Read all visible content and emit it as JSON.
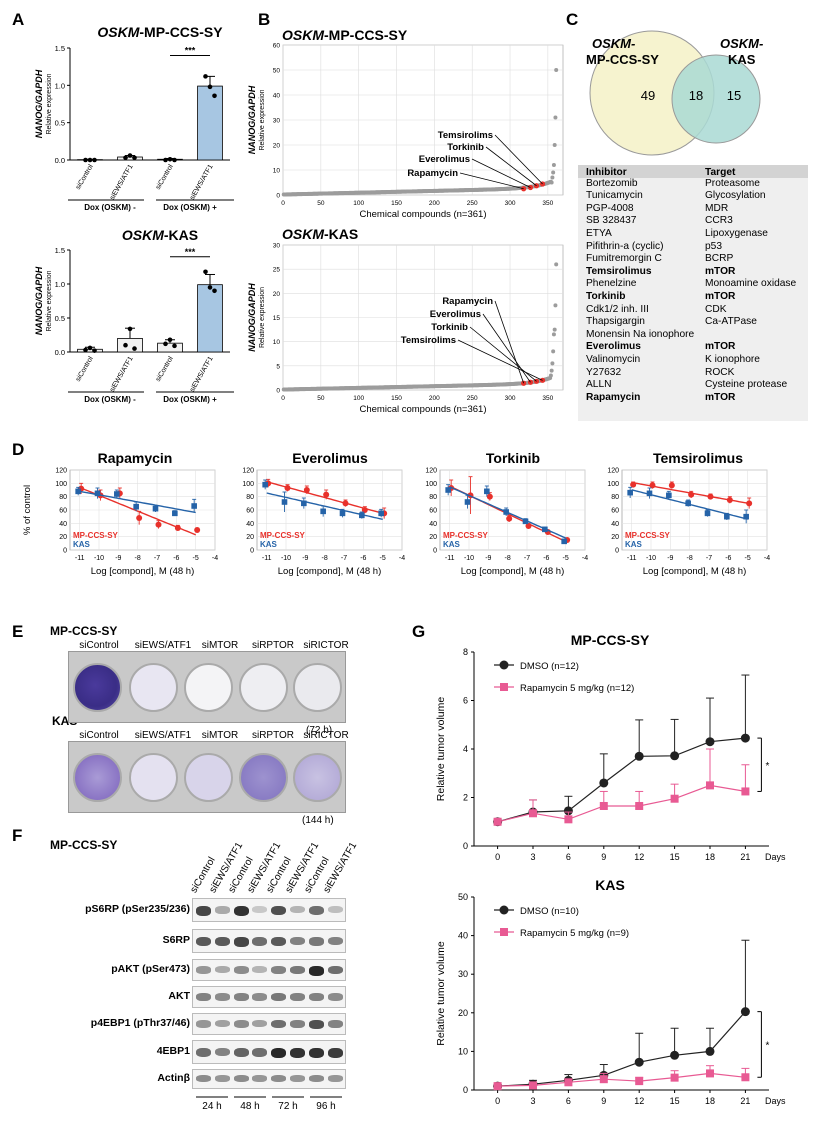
{
  "panels": {
    "A": "A",
    "B": "B",
    "C": "C",
    "D": "D",
    "E": "E",
    "F": "F",
    "G": "G"
  },
  "panelA": {
    "title_top_italic": "OSKM",
    "title_top_rest": "-MP-CCS-SY",
    "title_bottom_italic": "OSKM",
    "title_bottom_rest": "-KAS",
    "ylabel_italic": "NANOG/GAPDH",
    "ylabel_sub": "Relative expression",
    "ticks_top": [
      "0.0",
      "0.5",
      "1.0",
      "1.5"
    ],
    "ticks_bottom": [
      "0.0",
      "0.5",
      "1.0",
      "1.5"
    ],
    "categories": [
      "siControl",
      "siEWS/ATF1",
      "siControl",
      "siEWS/ATF1"
    ],
    "group_minus": "Dox (OSKM) -",
    "group_plus": "Dox (OSKM) +",
    "sig": "***"
  },
  "panelB": {
    "title_italic": "OSKM",
    "title_top_rest": "-MP-CCS-SY",
    "title_bottom_rest": "-KAS",
    "ylabel_italic": "NANOG/GAPDH",
    "ylabel_sub": "Relative expression",
    "yticks": [
      "0",
      "10",
      "20",
      "30",
      "40",
      "50",
      "60"
    ],
    "xticks": [
      "0",
      "50",
      "100",
      "150",
      "200",
      "250",
      "300",
      "350"
    ],
    "xlabel": "Chemical compounds (n=361)",
    "labels_top": [
      "Temsirolims",
      "Torkinib",
      "Everolimus",
      "Rapamycin"
    ],
    "labels_bottom": [
      "Rapamycin",
      "Everolimus",
      "Torkinib",
      "Temsirolims"
    ]
  },
  "panelC": {
    "set1_italic": "OSKM-",
    "set1_rest": "MP-CCS-SY",
    "set2_italic": "OSKM-",
    "set2_rest": "KAS",
    "only1": "49",
    "both": "18",
    "only2": "15",
    "header": {
      "inhibitor": "Inhibitor",
      "target": "Target"
    },
    "rows": [
      {
        "inhibitor": "Bortezomib",
        "target": "Proteasome",
        "bold": false
      },
      {
        "inhibitor": "Tunicamycin",
        "target": "Glycosylation",
        "bold": false
      },
      {
        "inhibitor": "PGP-4008",
        "target": "MDR",
        "bold": false
      },
      {
        "inhibitor": "SB 328437",
        "target": "CCR3",
        "bold": false
      },
      {
        "inhibitor": "ETYA",
        "target": "Lipoxygenase",
        "bold": false
      },
      {
        "inhibitor": "Pifithrin-a (cyclic)",
        "target": "p53",
        "bold": false
      },
      {
        "inhibitor": "Fumitremorgin C",
        "target": "BCRP",
        "bold": false
      },
      {
        "inhibitor": "Temsirolimus",
        "target": "mTOR",
        "bold": true
      },
      {
        "inhibitor": "Phenelzine",
        "target": "Monoamine oxidase",
        "bold": false
      },
      {
        "inhibitor": "Torkinib",
        "target": "mTOR",
        "bold": true
      },
      {
        "inhibitor": "Cdk1/2 inh. III",
        "target": "CDK",
        "bold": false
      },
      {
        "inhibitor": "Thapsigargin",
        "target": "Ca-ATPase",
        "bold": false
      },
      {
        "inhibitor": "Monensin Na ionophore",
        "target": "",
        "bold": false
      },
      {
        "inhibitor": "Everolimus",
        "target": "mTOR",
        "bold": true
      },
      {
        "inhibitor": "Valinomycin",
        "target": "K ionophore",
        "bold": false
      },
      {
        "inhibitor": "Y27632",
        "target": "ROCK",
        "bold": false
      },
      {
        "inhibitor": "ALLN",
        "target": "Cysteine protease",
        "bold": false
      },
      {
        "inhibitor": "Rapamycin",
        "target": "mTOR",
        "bold": true
      }
    ]
  },
  "panelD": {
    "titles": [
      "Rapamycin",
      "Everolimus",
      "Torkinib",
      "Temsirolimus"
    ],
    "ylabel": "% of control",
    "yticks": [
      "0",
      "20",
      "40",
      "60",
      "80",
      "100",
      "120"
    ],
    "xticks": [
      "-11",
      "-10",
      "-9",
      "-8",
      "-7",
      "-6",
      "-5",
      "-4"
    ],
    "xlabel": "Log [compond], M (48 h)",
    "legend_red": "MP-CCS-SY",
    "legend_blue": "KAS"
  },
  "panelE": {
    "cell1": "MP-CCS-SY",
    "cell2": "KAS",
    "wells": [
      "siControl",
      "siEWS/ATF1",
      "siMTOR",
      "siRPTOR",
      "siRICTOR"
    ],
    "time1": "(72 h)",
    "time2": "(144 h)"
  },
  "panelF": {
    "cell": "MP-CCS-SY",
    "lanes": [
      "siControl",
      "siEWS/ATF1",
      "siControl",
      "siEWS/ATF1",
      "siControl",
      "siEWS/ATF1",
      "siControl",
      "siEWS/ATF1"
    ],
    "blots": [
      "pS6RP (pSer235/236)",
      "S6RP",
      "pAKT (pSer473)",
      "AKT",
      "p4EBP1 (pThr37/46)",
      "4EBP1",
      "Actinβ"
    ],
    "times": [
      "24 h",
      "48 h",
      "72 h",
      "96 h"
    ]
  },
  "panelG": {
    "title_top": "MP-CCS-SY",
    "title_bottom": "KAS",
    "ylabel": "Relative tumor volume",
    "yticks_top": [
      "0",
      "2",
      "4",
      "6",
      "8"
    ],
    "yticks_bottom": [
      "0",
      "10",
      "20",
      "30",
      "40",
      "50"
    ],
    "xticks": [
      "0",
      "3",
      "6",
      "9",
      "12",
      "15",
      "18",
      "21"
    ],
    "xunit": "Days",
    "legend_top": [
      "DMSO (n=12)",
      "Rapamycin 5 mg/kg (n=12)"
    ],
    "legend_bottom": [
      "DMSO (n=10)",
      "Rapamycin 5 mg/kg (n=9)"
    ],
    "sig": "*"
  },
  "colors": {
    "red": "#e8312b",
    "blue": "#2563a8",
    "bar": "#a7c6e2",
    "pink": "#e85a93",
    "venn1": "#f6f3cf",
    "venn2": "#a9d9d3"
  },
  "chart_data": [
    {
      "type": "bar",
      "title": "OSKM-MP-CCS-SY",
      "ylabel": "NANOG/GAPDH Relative expression",
      "ylim": [
        0,
        1.5
      ],
      "categories": [
        "siControl",
        "siEWS/ATF1",
        "siControl",
        "siEWS/ATF1"
      ],
      "values": [
        0.005,
        0.04,
        0.01,
        0.99
      ],
      "errors": [
        0.005,
        0.02,
        0.01,
        0.13
      ],
      "points": [
        [
          0.0,
          0.0,
          0.0
        ],
        [
          0.03,
          0.06,
          0.03
        ],
        [
          0.0,
          0.01,
          0.0
        ],
        [
          1.12,
          0.98,
          0.86
        ]
      ]
    },
    {
      "type": "bar",
      "title": "OSKM-KAS",
      "ylabel": "NANOG/GAPDH Relative expression",
      "ylim": [
        0,
        1.5
      ],
      "categories": [
        "siControl",
        "siEWS/ATF1",
        "siControl",
        "siEWS/ATF1"
      ],
      "values": [
        0.04,
        0.2,
        0.13,
        0.99
      ],
      "errors": [
        0.03,
        0.15,
        0.05,
        0.15
      ],
      "points": [
        [
          0.03,
          0.06,
          0.02
        ],
        [
          0.1,
          0.34,
          0.05
        ],
        [
          0.12,
          0.18,
          0.09
        ],
        [
          1.18,
          0.95,
          0.9
        ]
      ]
    },
    {
      "type": "scatter",
      "title": "OSKM-MP-CCS-SY",
      "xlabel": "Chemical compounds (n=361)",
      "ylim": [
        0,
        60
      ],
      "xlim": [
        0,
        370
      ],
      "n": 361,
      "highlight": [
        {
          "x": 318,
          "y": 2.5
        },
        {
          "x": 327,
          "y": 3.0
        },
        {
          "x": 335,
          "y": 3.7
        },
        {
          "x": 343,
          "y": 4.4
        }
      ],
      "top_values": [
        5,
        7,
        9,
        12,
        20,
        31,
        50
      ]
    },
    {
      "type": "scatter",
      "title": "OSKM-KAS",
      "xlabel": "Chemical compounds (n=361)",
      "ylim": [
        0,
        30
      ],
      "xlim": [
        0,
        370
      ],
      "n": 361,
      "highlight": [
        {
          "x": 318,
          "y": 1.4
        },
        {
          "x": 327,
          "y": 1.6
        },
        {
          "x": 335,
          "y": 1.8
        },
        {
          "x": 343,
          "y": 2.0
        }
      ],
      "top_values": [
        3,
        4,
        5.5,
        8,
        11.5,
        12.5,
        17.5,
        26
      ]
    },
    {
      "type": "line",
      "title": "Rapamycin",
      "x": [
        -11,
        -10,
        -9,
        -8,
        -7,
        -6,
        -5
      ],
      "series": [
        {
          "name": "MP-CCS-SY",
          "values": [
            92,
            82,
            85,
            48,
            38,
            33,
            30
          ],
          "errors": [
            8,
            8,
            8,
            10,
            6,
            4,
            3
          ]
        },
        {
          "name": "KAS",
          "values": [
            88,
            85,
            84,
            65,
            62,
            55,
            66
          ],
          "errors": [
            6,
            8,
            6,
            7,
            5,
            4,
            10
          ]
        }
      ],
      "ylim": [
        0,
        120
      ],
      "xlim": [
        -11.5,
        -4
      ]
    },
    {
      "type": "line",
      "title": "Everolimus",
      "x": [
        -11,
        -10,
        -9,
        -8,
        -7,
        -6,
        -5
      ],
      "series": [
        {
          "name": "MP-CCS-SY",
          "values": [
            100,
            93,
            90,
            83,
            70,
            60,
            55
          ],
          "errors": [
            6,
            5,
            6,
            7,
            5,
            5,
            8
          ]
        },
        {
          "name": "KAS",
          "values": [
            98,
            72,
            70,
            58,
            55,
            52,
            55
          ],
          "errors": [
            7,
            15,
            8,
            8,
            6,
            5,
            6
          ]
        }
      ],
      "ylim": [
        0,
        120
      ],
      "xlim": [
        -11.5,
        -4
      ]
    },
    {
      "type": "line",
      "title": "Torkinib",
      "x": [
        -11,
        -10,
        -9,
        -8,
        -7,
        -6,
        -5
      ],
      "series": [
        {
          "name": "MP-CCS-SY",
          "values": [
            93,
            82,
            80,
            47,
            36,
            27,
            15
          ],
          "errors": [
            12,
            28,
            6,
            5,
            4,
            3,
            3
          ]
        },
        {
          "name": "KAS",
          "values": [
            90,
            72,
            88,
            57,
            43,
            31,
            13
          ],
          "errors": [
            8,
            10,
            8,
            6,
            4,
            3,
            2
          ]
        }
      ],
      "ylim": [
        0,
        120
      ],
      "xlim": [
        -11.5,
        -4
      ]
    },
    {
      "type": "line",
      "title": "Temsirolimus",
      "x": [
        -11,
        -10,
        -9,
        -8,
        -7,
        -6,
        -5
      ],
      "series": [
        {
          "name": "MP-CCS-SY",
          "values": [
            98,
            97,
            97,
            83,
            80,
            75,
            70
          ],
          "errors": [
            4,
            5,
            5,
            5,
            4,
            5,
            8
          ]
        },
        {
          "name": "KAS",
          "values": [
            86,
            85,
            82,
            70,
            55,
            50,
            50
          ],
          "errors": [
            8,
            8,
            6,
            5,
            5,
            5,
            10
          ]
        }
      ],
      "ylim": [
        0,
        120
      ],
      "xlim": [
        -11.5,
        -4
      ]
    },
    {
      "type": "line",
      "title": "MP-CCS-SY",
      "ylabel": "Relative tumor volume",
      "x": [
        0,
        3,
        6,
        9,
        12,
        15,
        18,
        21
      ],
      "series": [
        {
          "name": "DMSO (n=12)",
          "values": [
            1.0,
            1.4,
            1.45,
            2.6,
            3.7,
            3.72,
            4.3,
            4.45
          ],
          "errors": [
            0.1,
            0.5,
            0.6,
            1.2,
            1.5,
            1.5,
            1.8,
            2.6
          ]
        },
        {
          "name": "Rapamycin 5 mg/kg (n=12)",
          "values": [
            1.0,
            1.35,
            1.1,
            1.65,
            1.65,
            1.95,
            2.5,
            2.25
          ],
          "errors": [
            0.1,
            0.55,
            0.3,
            0.6,
            0.6,
            0.6,
            1.5,
            1.1
          ]
        }
      ],
      "ylim": [
        0,
        8
      ],
      "xlim": [
        -2,
        23
      ]
    },
    {
      "type": "line",
      "title": "KAS",
      "ylabel": "Relative tumor volume",
      "x": [
        0,
        3,
        6,
        9,
        12,
        15,
        18,
        21
      ],
      "series": [
        {
          "name": "DMSO (n=10)",
          "values": [
            1.0,
            1.5,
            2.5,
            3.8,
            7.2,
            9.0,
            10.0,
            20.3
          ],
          "errors": [
            0.3,
            1.0,
            1.5,
            2.8,
            7.5,
            7.0,
            6.0,
            18.5
          ]
        },
        {
          "name": "Rapamycin 5 mg/kg (n=9)",
          "values": [
            1.0,
            1.2,
            2.0,
            2.8,
            2.3,
            3.2,
            4.3,
            3.3
          ],
          "errors": [
            0.3,
            0.6,
            0.8,
            1.5,
            1.0,
            1.8,
            2.0,
            2.3
          ]
        }
      ],
      "ylim": [
        0,
        50
      ],
      "xlim": [
        -2,
        23
      ]
    }
  ]
}
